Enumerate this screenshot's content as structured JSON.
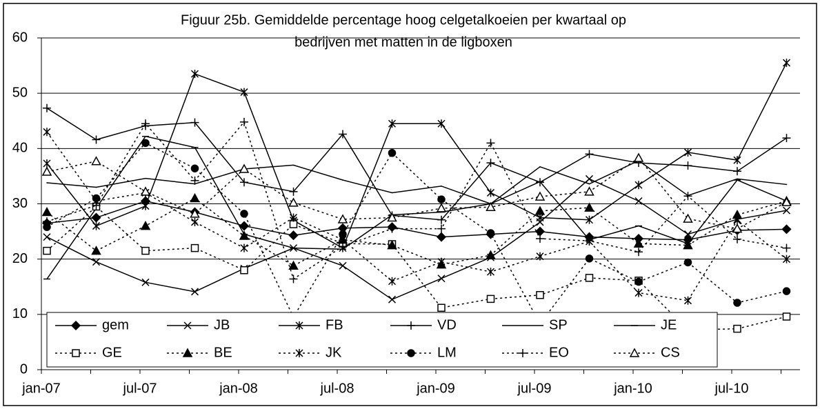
{
  "chart_data": {
    "type": "line",
    "title": [
      "Figuur 25b. Gemiddelde percentage hoog celgetalkoeien per kwartaal op",
      "bedrijven met matten in de ligboxen"
    ],
    "categories": [
      "jan-07",
      null,
      "jul-07",
      null,
      "jan-08",
      null,
      "jul-08",
      null,
      "jan-09",
      null,
      "jul-09",
      null,
      "jan-10",
      null,
      "jul-10",
      null
    ],
    "ylim": [
      0,
      60
    ],
    "yticks": [
      0,
      10,
      20,
      30,
      40,
      50,
      60
    ],
    "grid": true,
    "series": [
      {
        "name": "gem",
        "color": "#000000",
        "marker": "diamond",
        "dashed": false,
        "values": [
          26.5,
          27.5,
          30.5,
          28.5,
          26,
          24.3,
          25.6,
          25.8,
          24,
          24.5,
          25,
          24,
          23.7,
          23.5,
          25.2,
          25.4
        ]
      },
      {
        "name": "JB",
        "color": "#000000",
        "marker": "x",
        "dashed": false,
        "values": [
          24,
          19.5,
          15.8,
          14.1,
          18.3,
          22,
          18.8,
          12.7,
          16.5,
          20.3,
          26.7,
          34.5,
          30.5,
          24.5,
          27.2,
          28.8
        ]
      },
      {
        "name": "FB",
        "color": "#000000",
        "marker": "asterisk",
        "dashed": false,
        "values": [
          37.3,
          26,
          29.6,
          53.5,
          50.2,
          27,
          22,
          44.5,
          44.5,
          32,
          27.5,
          27.1,
          33.4,
          39.3,
          37.9,
          55.5
        ]
      },
      {
        "name": "VD",
        "color": "#000000",
        "marker": "plus",
        "dashed": false,
        "values": [
          47.3,
          41.6,
          44.1,
          44.7,
          33.9,
          32.2,
          42.6,
          27.9,
          27.1,
          37.4,
          33.9,
          39,
          37.4,
          36.9,
          35.9,
          41.9
        ]
      },
      {
        "name": "SP",
        "color": "#000000",
        "marker": "none",
        "dashed": false,
        "values": [
          33.8,
          33,
          34.6,
          33.6,
          36.3,
          37,
          34.3,
          32,
          33.2,
          30,
          36.7,
          33.6,
          37.8,
          31.5,
          34.5,
          33.5
        ]
      },
      {
        "name": "JE",
        "color": "#000000",
        "marker": "dash",
        "dashed": false,
        "values": [
          16.4,
          29.2,
          42.2,
          40.2,
          24.5,
          22,
          21.8,
          28,
          28.5,
          30,
          34,
          23.5,
          26,
          22.8,
          34.3,
          30.5
        ]
      },
      {
        "name": "GE",
        "color": "#000000",
        "marker": "square",
        "dashed": true,
        "values": [
          21.5,
          29.5,
          21.5,
          22,
          18,
          26.3,
          22.8,
          22.7,
          11.2,
          12.8,
          13.5,
          16.6,
          16.1,
          7.2,
          7.4,
          9.6
        ]
      },
      {
        "name": "BE",
        "color": "#000000",
        "marker": "triangle-filled",
        "dashed": true,
        "values": [
          28.5,
          21.5,
          26,
          31,
          24.2,
          18.8,
          23.5,
          22.5,
          19,
          20.7,
          28.7,
          29.3,
          22.8,
          22.5,
          28,
          30.5
        ]
      },
      {
        "name": "JK",
        "color": "#000000",
        "marker": "asterisk",
        "dashed": true,
        "values": [
          43,
          30.5,
          32,
          26.7,
          22,
          27.5,
          23.5,
          16,
          19.5,
          17.7,
          20.5,
          23.2,
          13.9,
          12.5,
          27,
          20
        ]
      },
      {
        "name": "LM",
        "color": "#000000",
        "marker": "circle",
        "dashed": true,
        "values": [
          25.8,
          31,
          41,
          36.4,
          28.2,
          9.5,
          24.5,
          39.2,
          30.8,
          24.7,
          8.3,
          20.1,
          15.9,
          19.4,
          12.1,
          14.2
        ]
      },
      {
        "name": "EO",
        "color": "#000000",
        "marker": "plus",
        "dashed": true,
        "values": [
          26.8,
          29.7,
          44.5,
          34.2,
          44.8,
          16.4,
          22.3,
          25.5,
          25.5,
          41,
          23.7,
          23.3,
          21.3,
          31.4,
          23.6,
          22
        ]
      },
      {
        "name": "CS",
        "color": "#000000",
        "marker": "triangle-open",
        "dashed": true,
        "values": [
          35.8,
          37.7,
          32.2,
          28.2,
          36.3,
          30.2,
          27.2,
          27.5,
          29.2,
          29.4,
          31.3,
          32.2,
          38.3,
          27.3,
          25.5,
          30.3
        ]
      }
    ]
  }
}
